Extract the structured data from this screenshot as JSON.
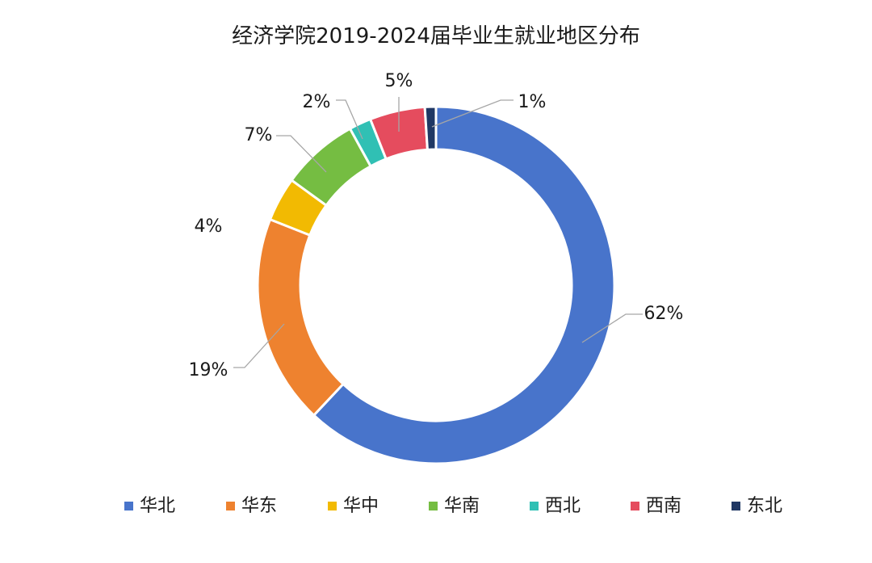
{
  "chart_data": {
    "type": "pie",
    "variant": "donut",
    "title": "经济学院2019-2024届毕业生就业地区分布",
    "legend_position": "bottom",
    "slices": [
      {
        "label": "华北",
        "value": 62,
        "display": "62%",
        "color": "#4874cb"
      },
      {
        "label": "华东",
        "value": 19,
        "display": "19%",
        "color": "#ee822f"
      },
      {
        "label": "华中",
        "value": 4,
        "display": "4%",
        "color": "#f2ba02"
      },
      {
        "label": "华南",
        "value": 7,
        "display": "7%",
        "color": "#75bd42"
      },
      {
        "label": "西北",
        "value": 2,
        "display": "2%",
        "color": "#30c0b4"
      },
      {
        "label": "西南",
        "value": 5,
        "display": "5%",
        "color": "#e54c5e"
      },
      {
        "label": "东北",
        "value": 1,
        "display": "1%",
        "color": "#203864"
      }
    ]
  }
}
